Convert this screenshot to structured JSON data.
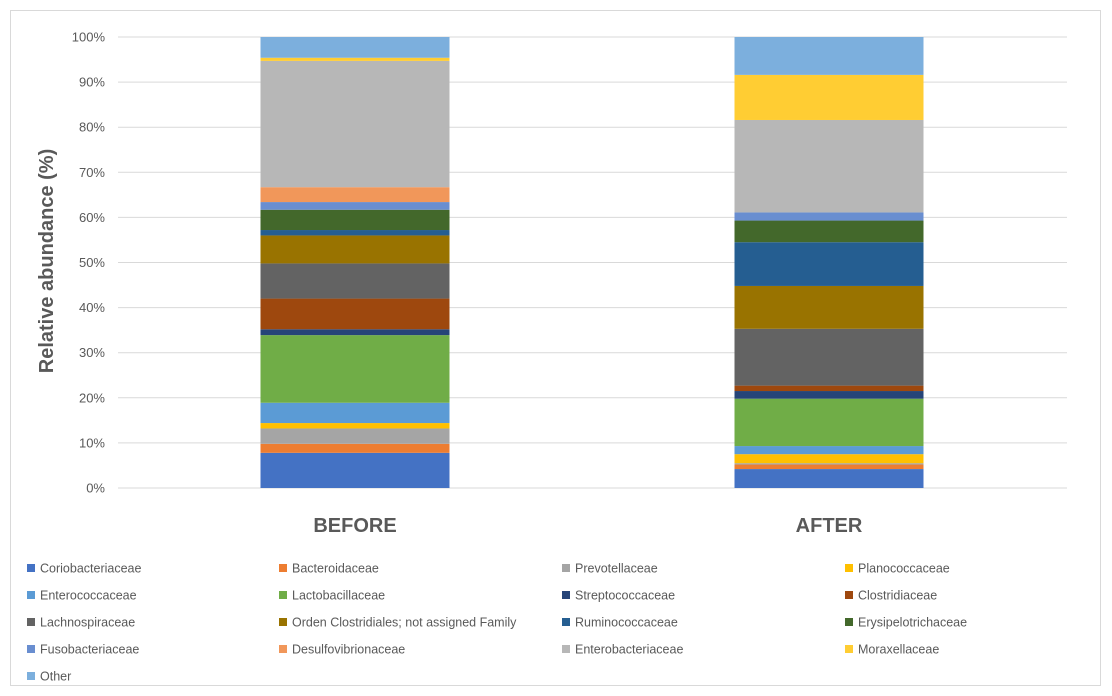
{
  "chart_data": {
    "type": "bar",
    "stacked": true,
    "percent_stacked": true,
    "title": "",
    "xlabel": "",
    "ylabel": "Relative abundance (%)",
    "ylim": [
      0,
      100
    ],
    "yticks": [
      "0%",
      "10%",
      "20%",
      "30%",
      "40%",
      "50%",
      "60%",
      "70%",
      "80%",
      "90%",
      "100%"
    ],
    "grid": true,
    "legend_position": "bottom",
    "categories": [
      "BEFORE",
      "AFTER"
    ],
    "series": [
      {
        "name": "Coriobacteriaceae",
        "color": "#4472C4",
        "values": [
          7.8,
          4.2
        ]
      },
      {
        "name": "Bacteroidaceae",
        "color": "#ED7D31",
        "values": [
          2.0,
          1.0
        ]
      },
      {
        "name": "Prevotellaceae",
        "color": "#A5A5A5",
        "values": [
          3.4,
          0.3
        ]
      },
      {
        "name": "Planococcaceae",
        "color": "#FFC000",
        "values": [
          1.2,
          2.0
        ]
      },
      {
        "name": "Enterococcaceae",
        "color": "#5B9BD5",
        "values": [
          4.5,
          1.8
        ]
      },
      {
        "name": "Lactobacillaceae",
        "color": "#70AD47",
        "values": [
          15.0,
          10.5
        ]
      },
      {
        "name": "Streptococcaceae",
        "color": "#264478",
        "values": [
          1.3,
          1.7
        ]
      },
      {
        "name": "Clostridiaceae",
        "color": "#9E480E",
        "values": [
          6.8,
          1.2
        ]
      },
      {
        "name": "Lachnospiraceae",
        "color": "#636363",
        "values": [
          7.8,
          12.6
        ]
      },
      {
        "name": "Orden Clostridiales; not assigned Family",
        "color": "#997300",
        "values": [
          6.2,
          9.5
        ]
      },
      {
        "name": "Ruminococcaceae",
        "color": "#255E91",
        "values": [
          1.2,
          9.7
        ]
      },
      {
        "name": "Erysipelotrichaceae",
        "color": "#43682B",
        "values": [
          4.5,
          4.8
        ]
      },
      {
        "name": "Fusobacteriaceae",
        "color": "#698ED0",
        "values": [
          1.7,
          1.8
        ]
      },
      {
        "name": "Desulfovibrionaceae",
        "color": "#F1975A",
        "values": [
          3.3,
          0.0
        ]
      },
      {
        "name": "Enterobacteriaceae",
        "color": "#B7B7B7",
        "values": [
          28.0,
          20.5
        ]
      },
      {
        "name": "Moraxellaceae",
        "color": "#FFCD33",
        "values": [
          0.7,
          10.0
        ]
      },
      {
        "name": "Other",
        "color": "#7CAFDD",
        "values": [
          4.6,
          8.4
        ]
      }
    ]
  }
}
